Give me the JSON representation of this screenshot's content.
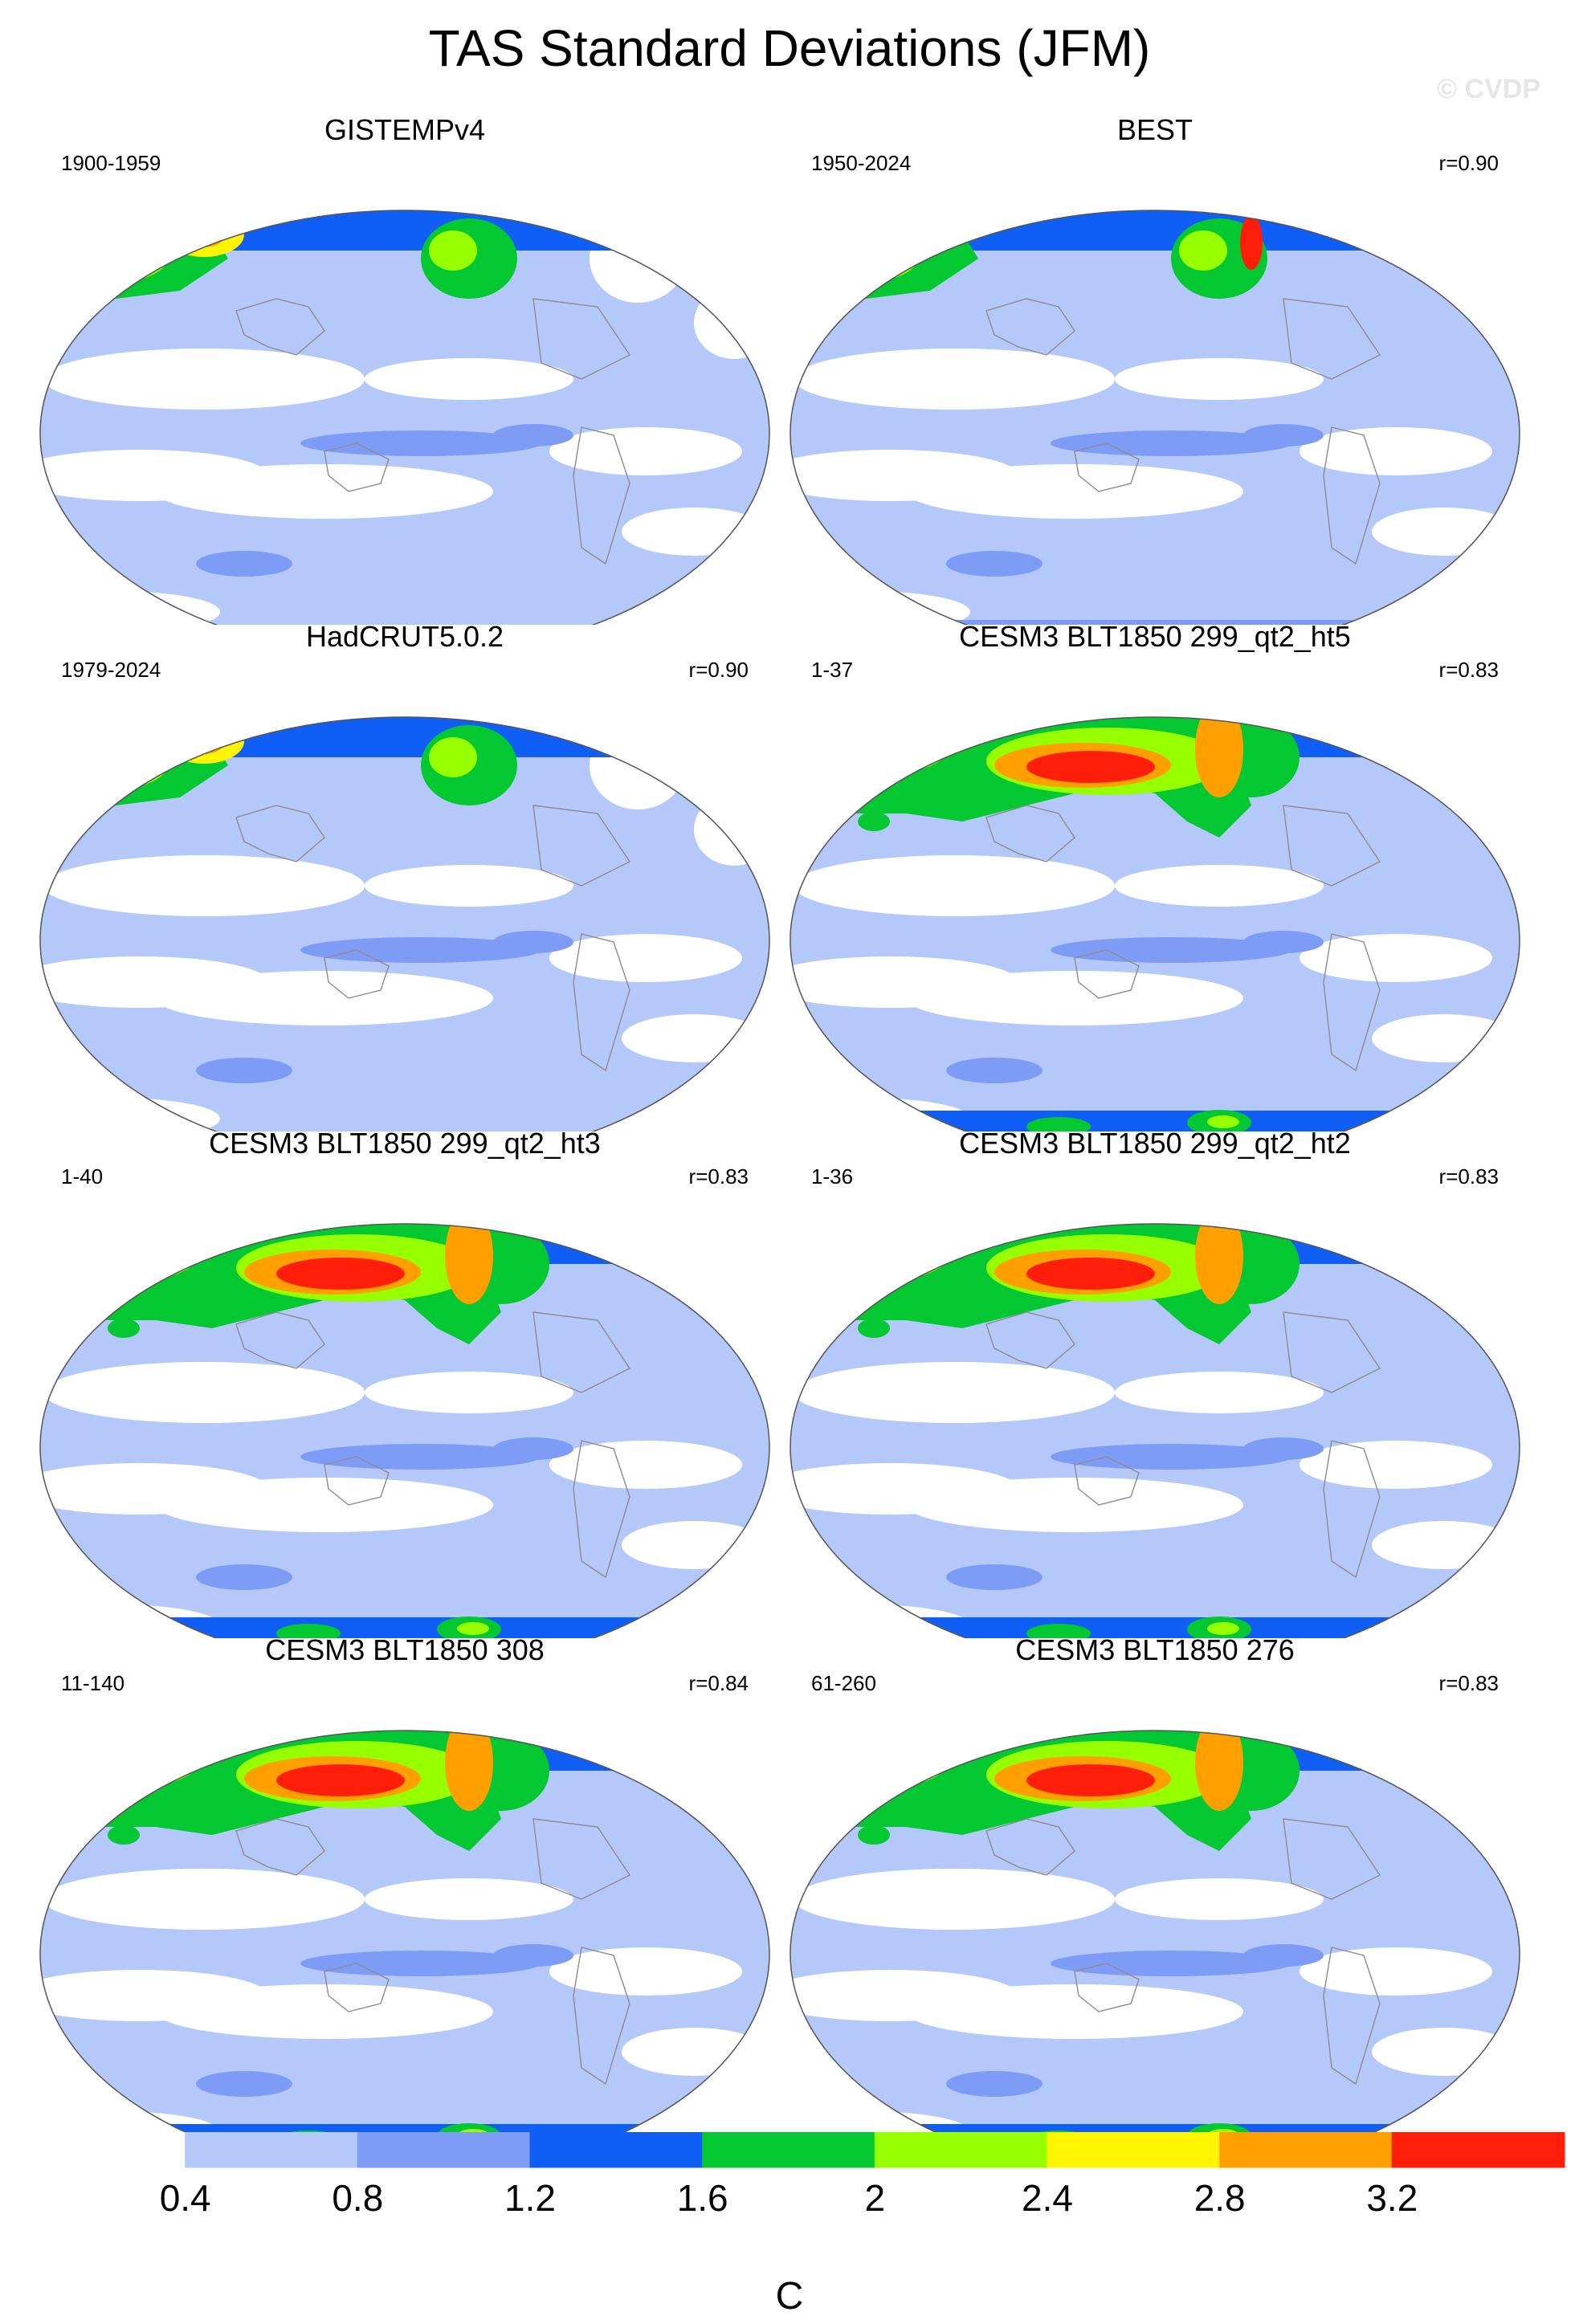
{
  "figure": {
    "title": "TAS Standard Deviations (JFM)",
    "watermark": "© CVDP"
  },
  "panels": [
    {
      "title": "GISTEMPv4",
      "period": "1900-1959",
      "corr": "",
      "style": "obs_sparse"
    },
    {
      "title": "BEST",
      "period": "1950-2024",
      "corr": "r=0.90",
      "style": "obs"
    },
    {
      "title": "HadCRUT5.0.2",
      "period": "1979-2024",
      "corr": "r=0.90",
      "style": "obs_sparse"
    },
    {
      "title": "CESM3 BLT1850 299_qt2_ht5",
      "period": "1-37",
      "corr": "r=0.83",
      "style": "model"
    },
    {
      "title": "CESM3 BLT1850 299_qt2_ht3",
      "period": "1-40",
      "corr": "r=0.83",
      "style": "model"
    },
    {
      "title": "CESM3 BLT1850 299_qt2_ht2",
      "period": "1-36",
      "corr": "r=0.83",
      "style": "model"
    },
    {
      "title": "CESM3 BLT1850 308",
      "period": "11-140",
      "corr": "r=0.84",
      "style": "model"
    },
    {
      "title": "CESM3 BLT1850 276",
      "period": "61-260",
      "corr": "r=0.83",
      "style": "model"
    }
  ],
  "colorbar": {
    "label": "C",
    "levels": [
      "0.4",
      "0.8",
      "1.2",
      "1.6",
      "2",
      "2.4",
      "2.8",
      "3.2"
    ],
    "colors": [
      "#ffffff",
      "#b4c8fa",
      "#7e9cf5",
      "#0f5ff7",
      "#04c832",
      "#96ff00",
      "#fff500",
      "#ffa000",
      "#ff1e0a"
    ]
  },
  "map_colors": {
    "land_outline": "#8c8c8c",
    "map_border": "#555555"
  }
}
